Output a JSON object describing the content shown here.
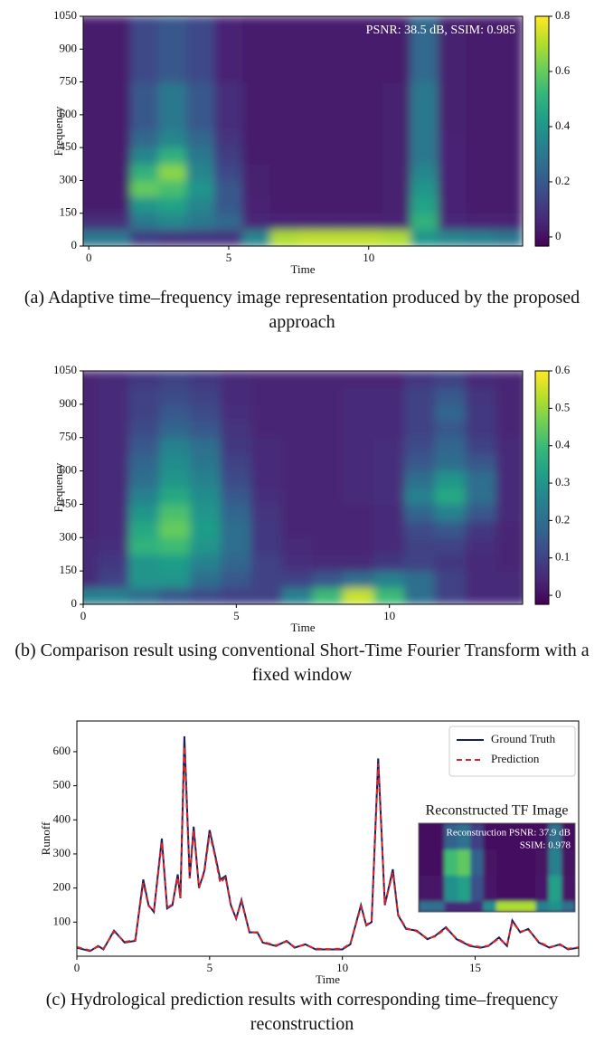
{
  "chart_data": [
    {
      "type": "heatmap",
      "colormap": "viridis",
      "annotation": "PSNR: 38.5 dB, SSIM: 0.985",
      "xlabel": "Time",
      "ylabel": "Frequency",
      "caption": "(a) Adaptive time–frequency image representation produced by the proposed approach",
      "xlim": [
        -0.2,
        15.5
      ],
      "xticks": [
        0,
        5,
        10
      ],
      "ylim": [
        0,
        1050
      ],
      "yticks": [
        0,
        150,
        300,
        450,
        600,
        750,
        900,
        1050
      ],
      "clim": [
        -0.033,
        0.8
      ],
      "cticks": [
        0,
        0.2,
        0.4,
        0.6,
        0.8
      ],
      "x": [
        0,
        1,
        2,
        3,
        4,
        5,
        6,
        7,
        8,
        9,
        10,
        11,
        12,
        13,
        14,
        15
      ],
      "y": [
        37.5,
        112.5,
        187.5,
        262.5,
        337.5,
        412.5,
        487.5,
        562.5,
        637.5,
        712.5,
        787.5,
        862.5,
        937.5,
        1012.5
      ],
      "z": [
        [
          0.3,
          0.3,
          0.12,
          0.1,
          0.1,
          0.1,
          0.35,
          0.7,
          0.72,
          0.72,
          0.72,
          0.7,
          0.4,
          0.35,
          0.33,
          0.3
        ],
        [
          0.08,
          0.08,
          0.3,
          0.35,
          0.3,
          0.25,
          0.06,
          0.05,
          0.05,
          0.05,
          0.05,
          0.05,
          0.5,
          0.06,
          0.05,
          0.05
        ],
        [
          0.03,
          0.03,
          0.4,
          0.45,
          0.35,
          0.2,
          0.05,
          0.03,
          0.03,
          0.03,
          0.03,
          0.04,
          0.45,
          0.05,
          0.03,
          0.03
        ],
        [
          0.03,
          0.03,
          0.6,
          0.55,
          0.4,
          0.2,
          0.04,
          0.03,
          0.03,
          0.03,
          0.03,
          0.04,
          0.4,
          0.05,
          0.03,
          0.03
        ],
        [
          0.03,
          0.03,
          0.5,
          0.65,
          0.35,
          0.15,
          0.04,
          0.03,
          0.03,
          0.03,
          0.03,
          0.04,
          0.35,
          0.05,
          0.03,
          0.03
        ],
        [
          0.03,
          0.03,
          0.35,
          0.5,
          0.3,
          0.12,
          0.03,
          0.03,
          0.03,
          0.03,
          0.03,
          0.04,
          0.3,
          0.05,
          0.03,
          0.03
        ],
        [
          0.03,
          0.03,
          0.25,
          0.35,
          0.25,
          0.1,
          0.03,
          0.03,
          0.03,
          0.03,
          0.03,
          0.04,
          0.3,
          0.05,
          0.03,
          0.03
        ],
        [
          0.03,
          0.03,
          0.2,
          0.3,
          0.2,
          0.08,
          0.03,
          0.03,
          0.03,
          0.03,
          0.03,
          0.04,
          0.3,
          0.04,
          0.03,
          0.03
        ],
        [
          0.03,
          0.03,
          0.2,
          0.3,
          0.2,
          0.08,
          0.03,
          0.03,
          0.03,
          0.03,
          0.03,
          0.04,
          0.3,
          0.04,
          0.03,
          0.03
        ],
        [
          0.03,
          0.03,
          0.2,
          0.3,
          0.2,
          0.08,
          0.03,
          0.03,
          0.03,
          0.03,
          0.03,
          0.04,
          0.3,
          0.04,
          0.03,
          0.03
        ],
        [
          0.03,
          0.03,
          0.15,
          0.2,
          0.15,
          0.05,
          0.03,
          0.03,
          0.03,
          0.03,
          0.03,
          0.03,
          0.25,
          0.04,
          0.03,
          0.03
        ],
        [
          0.03,
          0.03,
          0.15,
          0.2,
          0.15,
          0.05,
          0.03,
          0.03,
          0.03,
          0.03,
          0.03,
          0.03,
          0.25,
          0.04,
          0.03,
          0.03
        ],
        [
          0.03,
          0.03,
          0.15,
          0.2,
          0.15,
          0.05,
          0.03,
          0.03,
          0.03,
          0.03,
          0.03,
          0.03,
          0.25,
          0.04,
          0.03,
          0.03
        ],
        [
          0.03,
          0.03,
          0.15,
          0.2,
          0.15,
          0.05,
          0.03,
          0.03,
          0.03,
          0.03,
          0.03,
          0.03,
          0.25,
          0.04,
          0.03,
          0.03
        ]
      ]
    },
    {
      "type": "heatmap",
      "colormap": "viridis",
      "xlabel": "Time",
      "ylabel": "Frequency",
      "caption": "(b) Comparison result using conventional Short-Time Fourier Transform with a fixed window",
      "xlim": [
        0,
        14.35
      ],
      "xticks": [
        0,
        5,
        10
      ],
      "ylim": [
        0,
        1050
      ],
      "yticks": [
        0,
        150,
        300,
        450,
        600,
        750,
        900,
        1050
      ],
      "clim": [
        -0.024,
        0.6
      ],
      "cticks": [
        0,
        0.1,
        0.2,
        0.3,
        0.4,
        0.5,
        0.6
      ],
      "x": [
        0,
        1,
        2,
        3,
        4,
        5,
        6,
        7,
        8,
        9,
        10,
        11,
        12,
        13,
        14
      ],
      "y": [
        37.5,
        112.5,
        187.5,
        262.5,
        337.5,
        412.5,
        487.5,
        562.5,
        637.5,
        712.5,
        787.5,
        862.5,
        937.5,
        1012.5
      ],
      "z": [
        [
          0.25,
          0.25,
          0.2,
          0.15,
          0.12,
          0.1,
          0.1,
          0.25,
          0.4,
          0.55,
          0.4,
          0.2,
          0.1,
          0.05,
          0.05
        ],
        [
          0.05,
          0.1,
          0.3,
          0.3,
          0.2,
          0.15,
          0.1,
          0.1,
          0.15,
          0.2,
          0.25,
          0.2,
          0.1,
          0.05,
          0.05
        ],
        [
          0.05,
          0.08,
          0.3,
          0.32,
          0.25,
          0.18,
          0.1,
          0.06,
          0.05,
          0.05,
          0.08,
          0.1,
          0.08,
          0.05,
          0.04
        ],
        [
          0.05,
          0.06,
          0.38,
          0.4,
          0.3,
          0.2,
          0.08,
          0.05,
          0.04,
          0.04,
          0.05,
          0.1,
          0.1,
          0.06,
          0.04
        ],
        [
          0.04,
          0.05,
          0.35,
          0.45,
          0.32,
          0.2,
          0.08,
          0.04,
          0.04,
          0.04,
          0.05,
          0.12,
          0.15,
          0.08,
          0.04
        ],
        [
          0.04,
          0.05,
          0.3,
          0.42,
          0.3,
          0.18,
          0.07,
          0.04,
          0.04,
          0.04,
          0.05,
          0.18,
          0.25,
          0.15,
          0.05
        ],
        [
          0.04,
          0.05,
          0.25,
          0.35,
          0.28,
          0.15,
          0.06,
          0.04,
          0.04,
          0.05,
          0.06,
          0.25,
          0.35,
          0.2,
          0.05
        ],
        [
          0.04,
          0.05,
          0.2,
          0.3,
          0.25,
          0.12,
          0.05,
          0.04,
          0.04,
          0.05,
          0.06,
          0.2,
          0.3,
          0.2,
          0.05
        ],
        [
          0.04,
          0.05,
          0.18,
          0.28,
          0.22,
          0.1,
          0.05,
          0.04,
          0.04,
          0.05,
          0.06,
          0.15,
          0.2,
          0.15,
          0.05
        ],
        [
          0.04,
          0.05,
          0.15,
          0.25,
          0.2,
          0.08,
          0.05,
          0.04,
          0.04,
          0.05,
          0.06,
          0.12,
          0.18,
          0.1,
          0.05
        ],
        [
          0.04,
          0.05,
          0.12,
          0.18,
          0.15,
          0.07,
          0.04,
          0.04,
          0.04,
          0.05,
          0.05,
          0.1,
          0.15,
          0.08,
          0.04
        ],
        [
          0.04,
          0.05,
          0.1,
          0.15,
          0.12,
          0.06,
          0.04,
          0.04,
          0.04,
          0.05,
          0.05,
          0.1,
          0.18,
          0.08,
          0.04
        ],
        [
          0.04,
          0.05,
          0.1,
          0.12,
          0.1,
          0.05,
          0.04,
          0.04,
          0.04,
          0.05,
          0.05,
          0.1,
          0.15,
          0.07,
          0.04
        ],
        [
          0.04,
          0.05,
          0.08,
          0.1,
          0.08,
          0.05,
          0.04,
          0.04,
          0.04,
          0.04,
          0.04,
          0.08,
          0.1,
          0.05,
          0.04
        ]
      ]
    },
    {
      "type": "line",
      "xlabel": "Time",
      "ylabel": "Runoff",
      "legend": "upper right",
      "caption": "(c) Hydrological prediction results with corresponding time–frequency reconstruction",
      "xlim": [
        0,
        18.9
      ],
      "xticks": [
        0,
        5,
        10,
        15
      ],
      "ylim": [
        0,
        690
      ],
      "yticks": [
        100,
        200,
        300,
        400,
        500,
        600
      ],
      "x": [
        0,
        0.5,
        0.8,
        1.0,
        1.4,
        1.8,
        2.2,
        2.5,
        2.7,
        2.9,
        3.2,
        3.4,
        3.6,
        3.8,
        3.9,
        4.05,
        4.25,
        4.4,
        4.6,
        4.8,
        5.0,
        5.2,
        5.4,
        5.6,
        5.8,
        6.0,
        6.2,
        6.5,
        6.8,
        7.0,
        7.5,
        7.9,
        8.2,
        8.6,
        9.0,
        9.5,
        10.0,
        10.3,
        10.7,
        10.9,
        11.1,
        11.35,
        11.6,
        11.9,
        12.1,
        12.4,
        12.8,
        13.2,
        13.5,
        13.9,
        14.3,
        14.8,
        15.2,
        15.5,
        15.9,
        16.2,
        16.4,
        16.7,
        17.0,
        17.4,
        17.8,
        18.2,
        18.5,
        18.9
      ],
      "series": [
        {
          "name": "Ground Truth",
          "color": "#1a1f5e",
          "dash": "solid",
          "values": [
            25,
            15,
            30,
            20,
            75,
            40,
            45,
            225,
            150,
            130,
            345,
            140,
            150,
            240,
            170,
            645,
            230,
            380,
            200,
            250,
            370,
            300,
            225,
            235,
            150,
            110,
            165,
            70,
            70,
            40,
            30,
            45,
            25,
            35,
            20,
            20,
            20,
            35,
            150,
            90,
            100,
            580,
            150,
            255,
            120,
            80,
            75,
            50,
            60,
            85,
            50,
            30,
            25,
            30,
            55,
            30,
            105,
            70,
            80,
            40,
            25,
            35,
            20,
            25
          ]
        },
        {
          "name": "Prediction",
          "color": "#d62728",
          "dash": "dashed",
          "values": [
            27,
            17,
            28,
            22,
            72,
            42,
            47,
            215,
            148,
            132,
            335,
            142,
            152,
            232,
            172,
            615,
            228,
            370,
            202,
            245,
            360,
            295,
            215,
            232,
            148,
            112,
            160,
            72,
            68,
            42,
            32,
            43,
            27,
            33,
            22,
            21,
            22,
            37,
            145,
            92,
            102,
            565,
            152,
            245,
            122,
            82,
            73,
            52,
            58,
            82,
            52,
            32,
            27,
            31,
            52,
            32,
            100,
            72,
            78,
            42,
            27,
            33,
            22,
            26
          ]
        }
      ],
      "inset": {
        "title": "Reconstructed TF Image",
        "annotations": [
          "Reconstruction PSNR: 37.9 dB",
          "SSIM: 0.978"
        ],
        "colormap": "viridis",
        "clim": [
          0,
          0.8
        ],
        "z": [
          [
            0.3,
            0.3,
            0.1,
            0.1,
            0.1,
            0.4,
            0.7,
            0.7,
            0.7,
            0.35,
            0.4,
            0.3
          ],
          [
            0.05,
            0.05,
            0.4,
            0.45,
            0.2,
            0.05,
            0.03,
            0.03,
            0.03,
            0.05,
            0.45,
            0.05
          ],
          [
            0.03,
            0.03,
            0.55,
            0.6,
            0.25,
            0.04,
            0.03,
            0.03,
            0.03,
            0.04,
            0.35,
            0.04
          ],
          [
            0.03,
            0.03,
            0.25,
            0.3,
            0.15,
            0.03,
            0.03,
            0.03,
            0.03,
            0.03,
            0.3,
            0.03
          ]
        ]
      }
    }
  ]
}
